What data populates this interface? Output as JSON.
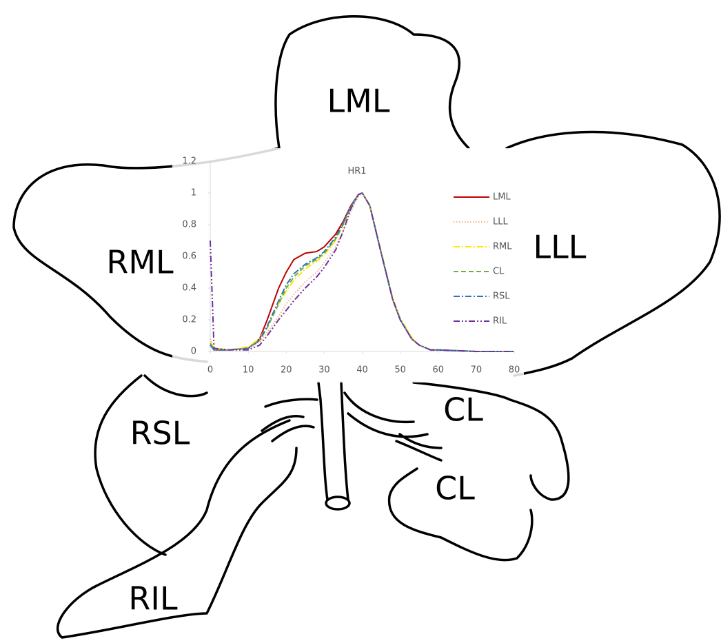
{
  "chart_data": {
    "type": "line",
    "title": "HR1",
    "x": [
      0,
      1,
      5,
      10,
      13,
      15,
      18,
      20,
      22,
      25,
      28,
      30,
      33,
      35,
      37,
      39,
      40,
      42,
      45,
      48,
      50,
      53,
      55,
      58,
      60,
      70,
      80
    ],
    "series": [
      {
        "name": "LML",
        "color": "#c00000",
        "dash": "solid",
        "values": [
          0.05,
          0.01,
          0.01,
          0.02,
          0.08,
          0.2,
          0.4,
          0.5,
          0.58,
          0.62,
          0.63,
          0.66,
          0.74,
          0.82,
          0.92,
          0.99,
          1,
          0.92,
          0.62,
          0.33,
          0.2,
          0.08,
          0.04,
          0.01,
          0.01,
          0,
          0
        ]
      },
      {
        "name": "LLL",
        "color": "#f4b183",
        "dash": "dotted",
        "values": [
          0.08,
          0.02,
          0.01,
          0.02,
          0.06,
          0.12,
          0.22,
          0.3,
          0.36,
          0.44,
          0.5,
          0.56,
          0.66,
          0.76,
          0.88,
          0.98,
          1,
          0.92,
          0.62,
          0.33,
          0.2,
          0.08,
          0.04,
          0.01,
          0.01,
          0,
          0
        ]
      },
      {
        "name": "RML",
        "color": "#ffe600",
        "dash": "dashdot",
        "values": [
          0.06,
          0.02,
          0.01,
          0.03,
          0.08,
          0.16,
          0.3,
          0.38,
          0.45,
          0.52,
          0.57,
          0.61,
          0.7,
          0.8,
          0.91,
          0.99,
          1,
          0.92,
          0.63,
          0.34,
          0.21,
          0.09,
          0.04,
          0.01,
          0.01,
          0,
          0
        ]
      },
      {
        "name": "CL",
        "color": "#70ad47",
        "dash": "dashed",
        "values": [
          0.05,
          0.01,
          0.01,
          0.02,
          0.07,
          0.15,
          0.3,
          0.4,
          0.47,
          0.54,
          0.58,
          0.62,
          0.71,
          0.8,
          0.91,
          0.99,
          1,
          0.92,
          0.62,
          0.33,
          0.2,
          0.08,
          0.04,
          0.01,
          0.01,
          0,
          0
        ]
      },
      {
        "name": "RSL",
        "color": "#2e75b6",
        "dash": "dashdot",
        "values": [
          0.04,
          0.01,
          0.01,
          0.02,
          0.07,
          0.16,
          0.32,
          0.42,
          0.49,
          0.55,
          0.59,
          0.63,
          0.72,
          0.81,
          0.92,
          0.99,
          1,
          0.92,
          0.62,
          0.33,
          0.2,
          0.08,
          0.04,
          0.01,
          0.01,
          0,
          0
        ]
      },
      {
        "name": "RIL",
        "color": "#7030a0",
        "dash": "dashdotdot",
        "values": [
          0.7,
          0.02,
          0.01,
          0.01,
          0.04,
          0.1,
          0.2,
          0.26,
          0.32,
          0.4,
          0.47,
          0.53,
          0.64,
          0.76,
          0.9,
          0.99,
          1,
          0.92,
          0.62,
          0.33,
          0.2,
          0.08,
          0.04,
          0.01,
          0.01,
          0,
          0
        ]
      }
    ],
    "xlim": [
      0,
      80
    ],
    "xticks": [
      0,
      10,
      20,
      30,
      40,
      50,
      60,
      70,
      80
    ],
    "ylim": [
      0,
      1.2
    ],
    "yticks": [
      0,
      0.2,
      0.4,
      0.6,
      0.8,
      1,
      1.2
    ]
  },
  "diagram": {
    "labels": [
      "LML",
      "LLL",
      "RML",
      "CL",
      "CL",
      "RSL",
      "RIL"
    ]
  }
}
